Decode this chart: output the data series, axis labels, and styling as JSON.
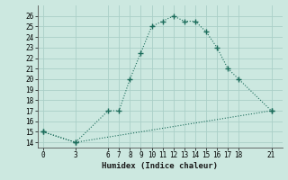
{
  "xlabel": "Humidex (Indice chaleur)",
  "bg_color": "#cce8e0",
  "grid_color": "#aacfc8",
  "line_color": "#1a6b5a",
  "curve1_x": [
    0,
    3,
    6,
    7,
    8,
    9,
    10,
    11,
    12,
    13,
    14,
    15,
    16,
    17,
    18,
    21
  ],
  "curve1_y": [
    15,
    14,
    17,
    17,
    20,
    22.5,
    25,
    25.5,
    26,
    25.5,
    25.5,
    24.5,
    23,
    21,
    20,
    17
  ],
  "curve2_x": [
    0,
    3,
    21
  ],
  "curve2_y": [
    15,
    14,
    17
  ],
  "ylim": [
    13.5,
    27
  ],
  "yticks": [
    14,
    15,
    16,
    17,
    18,
    19,
    20,
    21,
    22,
    23,
    24,
    25,
    26
  ],
  "xticks": [
    0,
    3,
    6,
    7,
    8,
    9,
    10,
    11,
    12,
    13,
    14,
    15,
    16,
    17,
    18,
    21
  ],
  "xlim": [
    -0.5,
    22
  ]
}
